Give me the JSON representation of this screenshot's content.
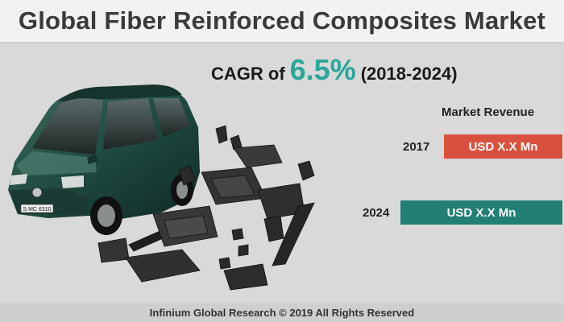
{
  "title": "Global Fiber Reinforced Composites Market",
  "cagr": {
    "label": "CAGR of",
    "value": "6.5%",
    "period": "(2018-2024)"
  },
  "market_revenue": {
    "label": "Market Revenue",
    "rows": [
      {
        "year": "2017",
        "value": "USD X.X Mn",
        "color": "#d9513e"
      },
      {
        "year": "2024",
        "value": "USD X.X Mn",
        "color": "#237f76"
      }
    ]
  },
  "car_plate": "S MC 6310",
  "footer": "Infinium Global Research © 2019 All Rights Reserved"
}
